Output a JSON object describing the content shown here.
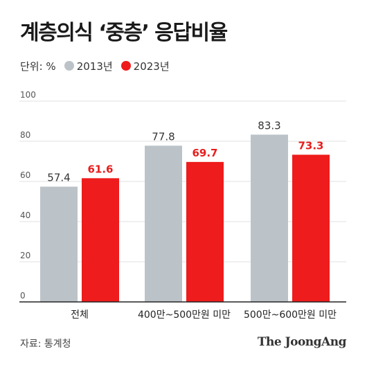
{
  "title": "계층의식 ‘중층’ 응답비율",
  "unit_label": "단위: %",
  "source": "자료: 통계청",
  "brand": "The JoongAng",
  "colors": {
    "series_2013": "#bcc3c8",
    "series_2023": "#ee1c1c",
    "value_2013": "#333333",
    "value_2023": "#e81e1e",
    "grid": "#e2e2e2",
    "axis": "#222222",
    "tick": "#555555"
  },
  "chart_data": {
    "type": "bar",
    "title": "계층의식 ‘중층’ 응답비율",
    "xlabel": "",
    "ylabel": "",
    "ylim": [
      0,
      100
    ],
    "yticks": [
      0,
      20,
      40,
      60,
      80,
      100
    ],
    "grid": true,
    "legend_position": "top-left",
    "categories": [
      "전체",
      "400만~500만원 미만",
      "500만~600만원 미만"
    ],
    "series": [
      {
        "name": "2013년",
        "values": [
          57.4,
          77.8,
          83.3
        ],
        "labels": [
          "57.4",
          "77.8",
          "83.3"
        ]
      },
      {
        "name": "2023년",
        "values": [
          61.6,
          69.7,
          73.3
        ],
        "labels": [
          "61.6",
          "69.7",
          "73.3"
        ]
      }
    ]
  }
}
